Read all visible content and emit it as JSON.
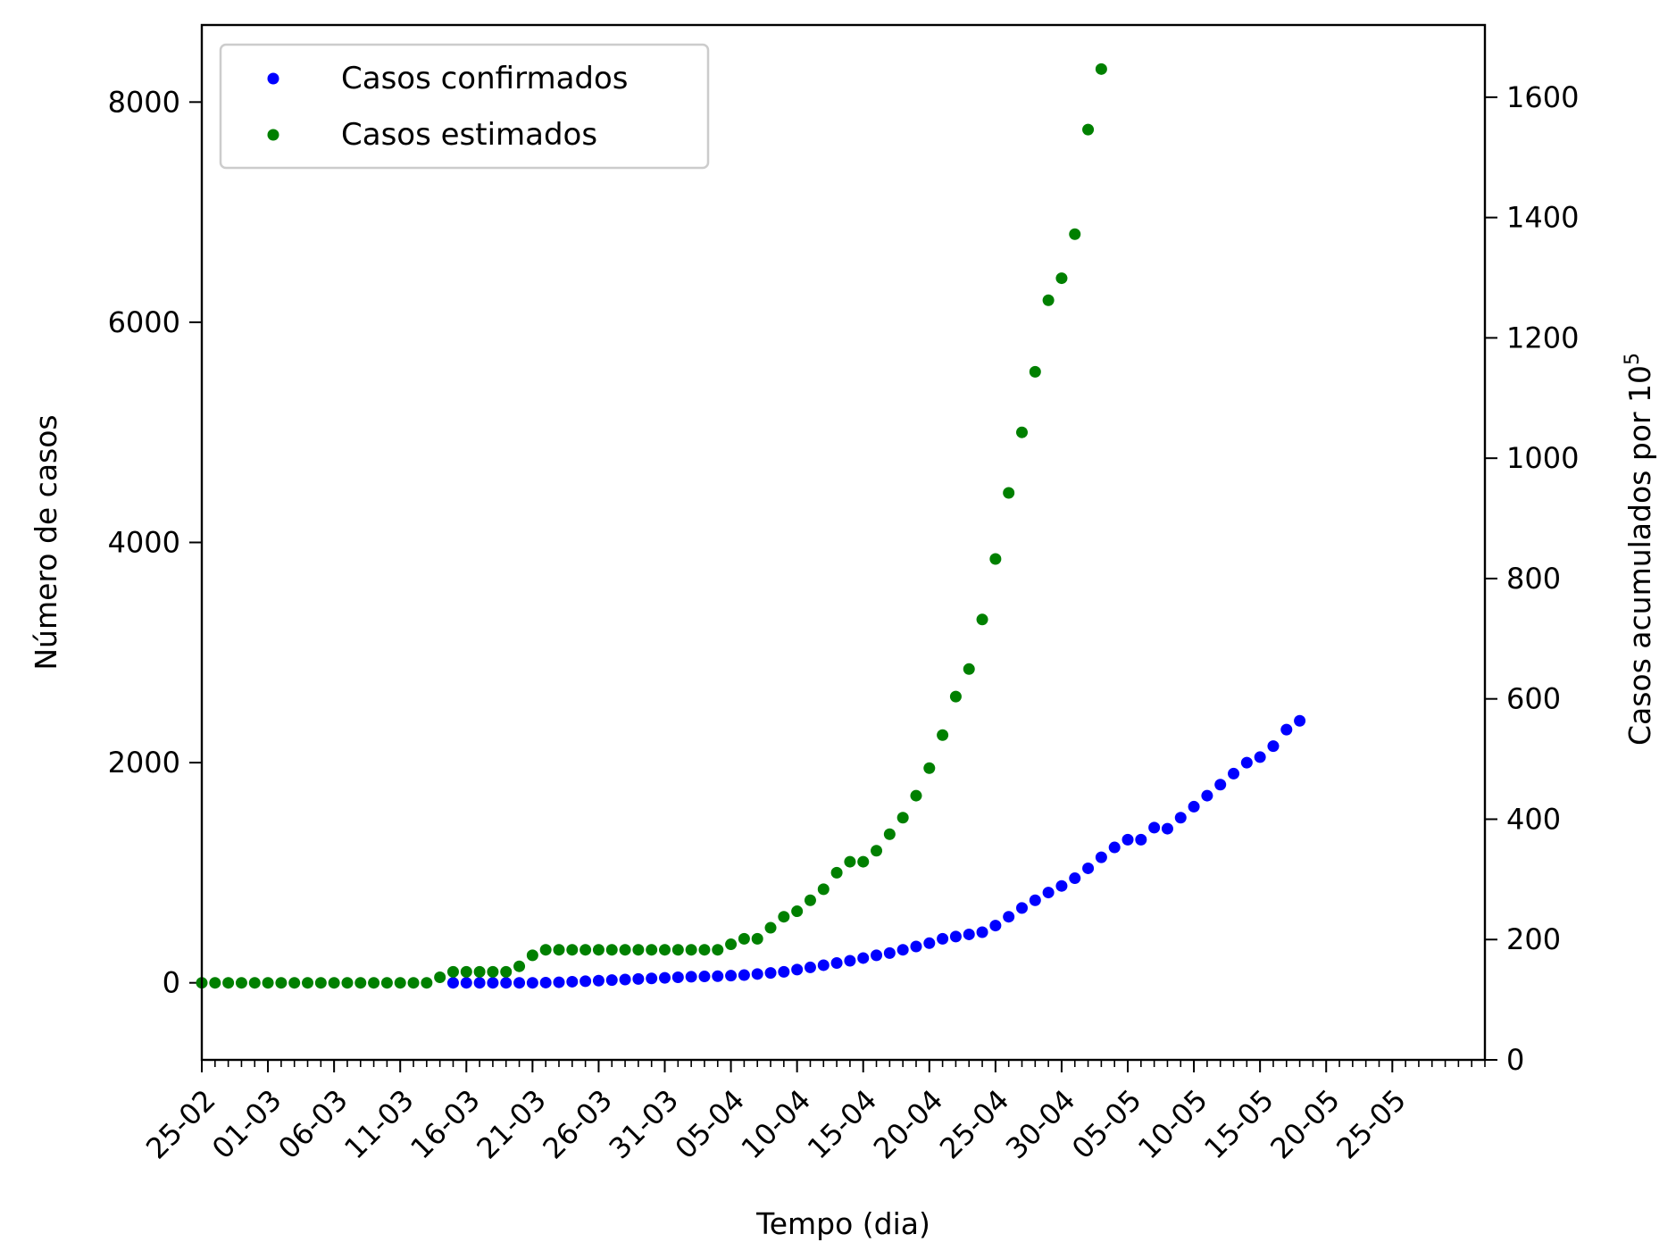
{
  "chart_data": {
    "type": "scatter",
    "xlabel": "Tempo (dia)",
    "ylabel_left": "Número de casos",
    "ylabel_right": "Casos acumulados por 10",
    "ylabel_right_superscript": "5",
    "x_axis": {
      "type": "date",
      "start": "2020-02-25",
      "end": "2020-06-01",
      "tick_labels": [
        "25-02",
        "01-03",
        "06-03",
        "11-03",
        "16-03",
        "21-03",
        "26-03",
        "31-03",
        "05-04",
        "10-04",
        "15-04",
        "20-04",
        "25-04",
        "30-04",
        "05-05",
        "10-05",
        "15-05",
        "20-05",
        "25-05"
      ],
      "major_tick_dates": [
        "2020-02-25",
        "2020-03-01",
        "2020-03-06",
        "2020-03-11",
        "2020-03-16",
        "2020-03-21",
        "2020-03-26",
        "2020-03-31",
        "2020-04-05",
        "2020-04-10",
        "2020-04-15",
        "2020-04-20",
        "2020-04-25",
        "2020-04-30",
        "2020-05-05",
        "2020-05-10",
        "2020-05-15",
        "2020-05-20",
        "2020-05-25"
      ],
      "minor_ticks": "daily"
    },
    "y_left": {
      "range": [
        -700,
        8700
      ],
      "ticks": [
        0,
        2000,
        4000,
        6000,
        8000
      ]
    },
    "y_right": {
      "range": [
        0,
        1720
      ],
      "ticks": [
        0,
        200,
        400,
        600,
        800,
        1000,
        1200,
        1400,
        1600
      ]
    },
    "grid": false,
    "legend": {
      "placement": "top-left"
    },
    "series": [
      {
        "name": "Casos confirmados",
        "color": "#0000ff",
        "start_date": "2020-03-15",
        "y": [
          0,
          0,
          0,
          0,
          0,
          0,
          0,
          2,
          5,
          10,
          15,
          20,
          25,
          30,
          35,
          40,
          45,
          50,
          55,
          58,
          60,
          65,
          70,
          80,
          90,
          100,
          120,
          140,
          160,
          180,
          200,
          225,
          250,
          270,
          300,
          330,
          360,
          400,
          420,
          440,
          460,
          520,
          600,
          680,
          750,
          820,
          880,
          950,
          1040,
          1140,
          1230,
          1300,
          1300,
          1410,
          1400,
          1500,
          1600,
          1700,
          1800,
          1900,
          2000,
          2050,
          2150,
          2300,
          2380
        ]
      },
      {
        "name": "Casos estimados",
        "color": "#008000",
        "start_date": "2020-02-25",
        "y": [
          0,
          0,
          0,
          0,
          0,
          0,
          0,
          0,
          0,
          0,
          0,
          0,
          0,
          0,
          0,
          0,
          0,
          0,
          50,
          100,
          100,
          100,
          100,
          100,
          150,
          250,
          300,
          300,
          300,
          300,
          300,
          300,
          300,
          300,
          300,
          300,
          300,
          300,
          300,
          300,
          350,
          400,
          400,
          500,
          600,
          650,
          750,
          850,
          1000,
          1100,
          1100,
          1200,
          1350,
          1500,
          1700,
          1950,
          2250,
          2600,
          2850,
          3300,
          3850,
          4450,
          5000,
          5550,
          6200,
          6400,
          6800,
          7750,
          8300
        ]
      }
    ]
  }
}
